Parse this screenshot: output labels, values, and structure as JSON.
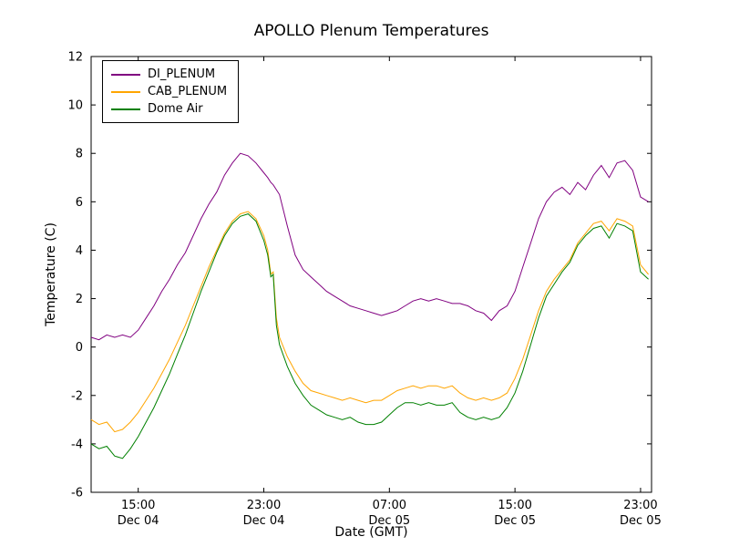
{
  "chart_data": {
    "type": "line",
    "title": "APOLLO Plenum Temperatures",
    "xlabel": "Date (GMT)",
    "ylabel": "Temperature (C)",
    "grid": false,
    "legend_position": "upper left",
    "xlim": [
      0,
      35.7
    ],
    "ylim": [
      -6,
      12
    ],
    "yticks": [
      -6,
      -4,
      -2,
      0,
      2,
      4,
      6,
      8,
      10,
      12
    ],
    "xticks": [
      {
        "pos": 3,
        "time": "15:00",
        "date": "Dec 04"
      },
      {
        "pos": 11,
        "time": "23:00",
        "date": "Dec 04"
      },
      {
        "pos": 19,
        "time": "07:00",
        "date": "Dec 05"
      },
      {
        "pos": 27,
        "time": "15:00",
        "date": "Dec 05"
      },
      {
        "pos": 35,
        "time": "23:00",
        "date": "Dec 05"
      }
    ],
    "x_unit": "hours after Dec 04 12:00 GMT",
    "x": [
      0,
      0.5,
      1,
      1.5,
      2,
      2.5,
      3,
      3.5,
      4,
      4.5,
      5,
      5.5,
      6,
      6.5,
      7,
      7.5,
      8,
      8.5,
      9,
      9.5,
      10,
      10.5,
      11,
      11.25,
      11.45,
      11.6,
      11.8,
      12,
      12.5,
      13,
      13.5,
      14,
      14.5,
      15,
      15.5,
      16,
      16.5,
      17,
      17.5,
      18,
      18.5,
      19,
      19.5,
      20,
      20.5,
      21,
      21.5,
      22,
      22.5,
      23,
      23.5,
      24,
      24.5,
      25,
      25.5,
      26,
      26.5,
      27,
      27.5,
      28,
      28.5,
      29,
      29.5,
      30,
      30.5,
      31,
      31.5,
      32,
      32.5,
      33,
      33.5,
      34,
      34.5,
      35,
      35.5
    ],
    "series": [
      {
        "name": "DI_PLENUM",
        "color": "#800080",
        "values": [
          0.4,
          0.3,
          0.5,
          0.4,
          0.5,
          0.4,
          0.7,
          1.2,
          1.7,
          2.3,
          2.8,
          3.4,
          3.9,
          4.6,
          5.3,
          5.9,
          6.4,
          7.1,
          7.6,
          8.0,
          7.9,
          7.6,
          7.2,
          7.0,
          6.8,
          6.7,
          6.5,
          6.3,
          5.0,
          3.8,
          3.2,
          2.9,
          2.6,
          2.3,
          2.1,
          1.9,
          1.7,
          1.6,
          1.5,
          1.4,
          1.3,
          1.4,
          1.5,
          1.7,
          1.9,
          2.0,
          1.9,
          2.0,
          1.9,
          1.8,
          1.8,
          1.7,
          1.5,
          1.4,
          1.1,
          1.5,
          1.7,
          2.3,
          3.3,
          4.3,
          5.3,
          6.0,
          6.4,
          6.6,
          6.3,
          6.8,
          6.5,
          7.1,
          7.5,
          7.0,
          7.6,
          7.7,
          7.3,
          6.2,
          6.0
        ]
      },
      {
        "name": "CAB_PLENUM",
        "color": "#FFA500",
        "values": [
          -3.0,
          -3.2,
          -3.1,
          -3.5,
          -3.4,
          -3.1,
          -2.7,
          -2.2,
          -1.7,
          -1.1,
          -0.5,
          0.2,
          0.9,
          1.7,
          2.5,
          3.3,
          4.0,
          4.7,
          5.2,
          5.5,
          5.6,
          5.3,
          4.6,
          4.0,
          3.0,
          3.1,
          1.2,
          0.4,
          -0.4,
          -1.0,
          -1.5,
          -1.8,
          -1.9,
          -2.0,
          -2.1,
          -2.2,
          -2.1,
          -2.2,
          -2.3,
          -2.2,
          -2.2,
          -2.0,
          -1.8,
          -1.7,
          -1.6,
          -1.7,
          -1.6,
          -1.6,
          -1.7,
          -1.6,
          -1.9,
          -2.1,
          -2.2,
          -2.1,
          -2.2,
          -2.1,
          -1.9,
          -1.3,
          -0.5,
          0.5,
          1.5,
          2.3,
          2.8,
          3.2,
          3.6,
          4.3,
          4.7,
          5.1,
          5.2,
          4.8,
          5.3,
          5.2,
          5.0,
          3.4,
          3.0
        ]
      },
      {
        "name": "Dome Air",
        "color": "#008000",
        "values": [
          -4.0,
          -4.2,
          -4.1,
          -4.5,
          -4.6,
          -4.2,
          -3.7,
          -3.1,
          -2.5,
          -1.8,
          -1.1,
          -0.3,
          0.5,
          1.4,
          2.3,
          3.1,
          3.9,
          4.6,
          5.1,
          5.4,
          5.5,
          5.2,
          4.4,
          3.8,
          2.9,
          3.0,
          0.9,
          0.1,
          -0.8,
          -1.5,
          -2.0,
          -2.4,
          -2.6,
          -2.8,
          -2.9,
          -3.0,
          -2.9,
          -3.1,
          -3.2,
          -3.2,
          -3.1,
          -2.8,
          -2.5,
          -2.3,
          -2.3,
          -2.4,
          -2.3,
          -2.4,
          -2.4,
          -2.3,
          -2.7,
          -2.9,
          -3.0,
          -2.9,
          -3.0,
          -2.9,
          -2.5,
          -1.9,
          -1.0,
          0.1,
          1.2,
          2.1,
          2.6,
          3.1,
          3.5,
          4.2,
          4.6,
          4.9,
          5.0,
          4.5,
          5.1,
          5.0,
          4.8,
          3.1,
          2.8
        ]
      }
    ]
  }
}
